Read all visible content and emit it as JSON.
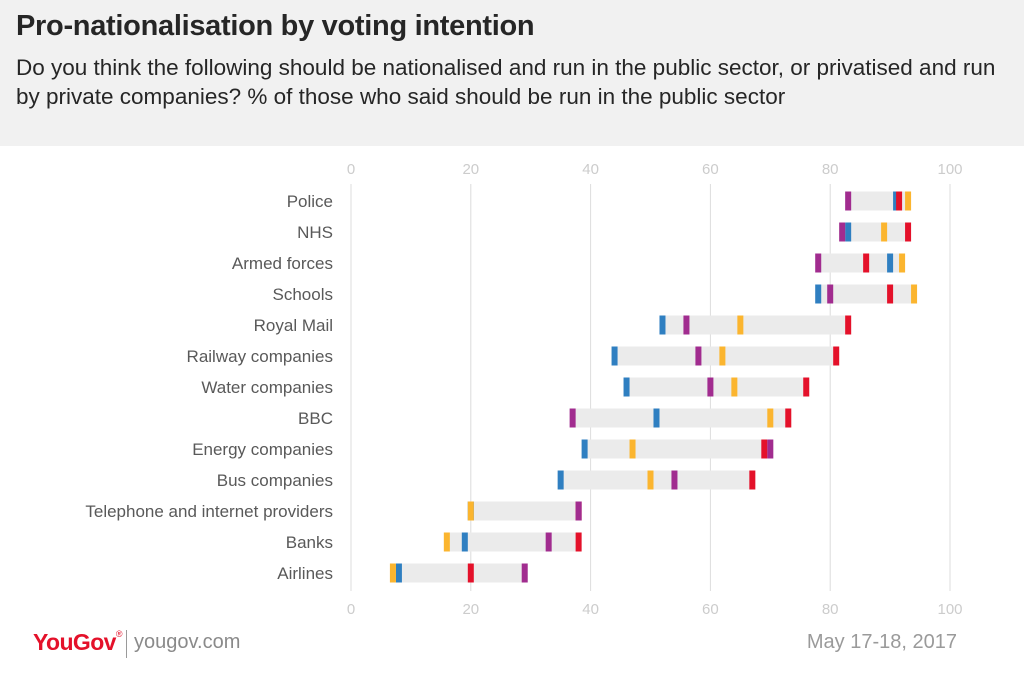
{
  "header": {
    "title": "Pro-nationalisation by voting intention",
    "subtitle": "Do you think the following should be nationalised and run in the public sector, or privatised and run by private companies? % of those who said should be run in the public sector"
  },
  "footer": {
    "brand": "YouGov",
    "brand_mark": "®",
    "url": "yougov.com",
    "date": "May 17-18, 2017"
  },
  "chart_data": {
    "type": "dot-range",
    "xlim": [
      0,
      100
    ],
    "x_ticks": [
      "0",
      "20",
      "40",
      "60",
      "80",
      "100"
    ],
    "grid": true,
    "categories": [
      "Police",
      "NHS",
      "Armed forces",
      "Schools",
      "Royal Mail",
      "Railway companies",
      "Water companies",
      "BBC",
      "Energy companies",
      "Bus companies",
      "Telephone and internet providers",
      "Banks",
      "Airlines"
    ],
    "series": [
      {
        "color": "#2f7fc1",
        "values": [
          91,
          83,
          90,
          78,
          52,
          44,
          46,
          51,
          39,
          35,
          20,
          19,
          8
        ]
      },
      {
        "color": "#e4112a",
        "values": [
          91.5,
          93,
          86,
          90,
          83,
          81,
          76,
          73,
          69,
          67,
          38,
          38,
          20
        ]
      },
      {
        "color": "#fbb52f",
        "values": [
          93,
          89,
          92,
          94,
          65,
          62,
          64,
          70,
          47,
          50,
          20,
          16,
          7
        ]
      },
      {
        "color": "#a12c8f",
        "values": [
          83,
          82,
          78,
          80,
          56,
          58,
          60,
          37,
          70,
          54,
          38,
          33,
          29
        ]
      }
    ],
    "colors": {
      "range": "#ebebeb",
      "grid": "#dcdcdc",
      "tick": "#cccccc",
      "label": "#595959"
    }
  }
}
